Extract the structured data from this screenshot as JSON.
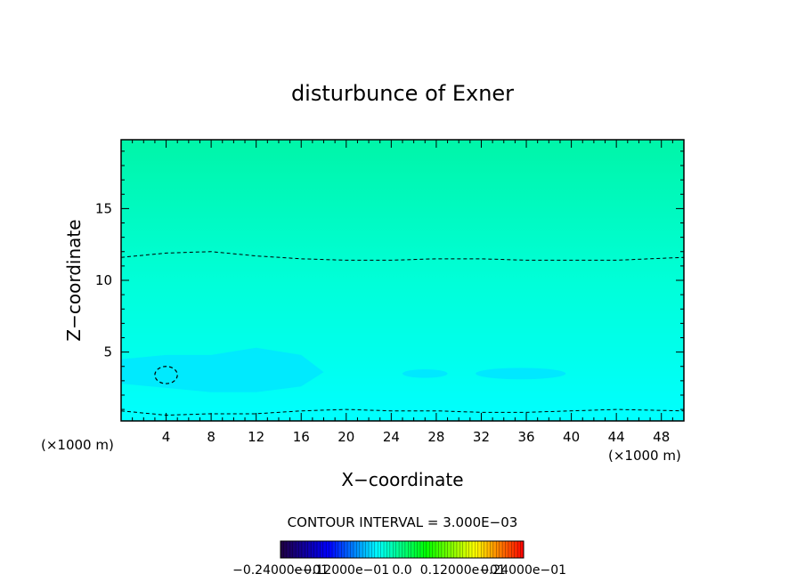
{
  "chart_data": {
    "type": "heatmap",
    "title": "disturbunce of Exner",
    "xlabel": "X−coordinate",
    "ylabel": "Z−coordinate",
    "x_unit_left": "(×1000 m)",
    "x_unit_right": "(×1000 m)",
    "xlim": [
      0,
      50
    ],
    "ylim": [
      0.2,
      19.8
    ],
    "x_ticks": [
      "4",
      "8",
      "12",
      "16",
      "20",
      "24",
      "28",
      "32",
      "36",
      "40",
      "44",
      "48"
    ],
    "y_ticks": [
      "5",
      "10",
      "15"
    ],
    "contour_interval_text": "CONTOUR INTERVAL = 3.000E−03",
    "colorbar": {
      "labels": [
        "−0.24000e−01",
        "−0.12000e−01",
        "0.0",
        "0.12000e−01",
        "0.24000e−01"
      ],
      "range": [
        -0.024,
        0.024
      ],
      "colormap": [
        "#200040",
        "#0000ff",
        "#00ffff",
        "#00ff00",
        "#ffff00",
        "#ff0000"
      ]
    },
    "field_colors": {
      "upper_layer": "#00f5a8",
      "mid_layer": "#00ffd8",
      "low_layer": "#00ffff",
      "minimum_region": "#00e8ff"
    },
    "zero_contours": [
      {
        "z_values": [
          11.6,
          11.9,
          12.0,
          11.7,
          11.5,
          11.4,
          11.4,
          11.5,
          11.5,
          11.4,
          11.4,
          11.6
        ],
        "x_values": [
          0,
          4,
          8,
          12,
          16,
          20,
          24,
          28,
          32,
          36,
          44,
          50
        ]
      },
      {
        "z_values": [
          0.9,
          0.6,
          0.7,
          0.7,
          0.9,
          1.0,
          0.9,
          0.9,
          0.8,
          0.8,
          1.0,
          0.9
        ],
        "x_values": [
          0,
          4,
          8,
          12,
          16,
          20,
          24,
          28,
          32,
          36,
          44,
          50
        ]
      }
    ],
    "closed_contour": {
      "x_center": 4,
      "z_center": 3.4,
      "x_radius": 1.0,
      "z_radius": 0.6
    }
  }
}
